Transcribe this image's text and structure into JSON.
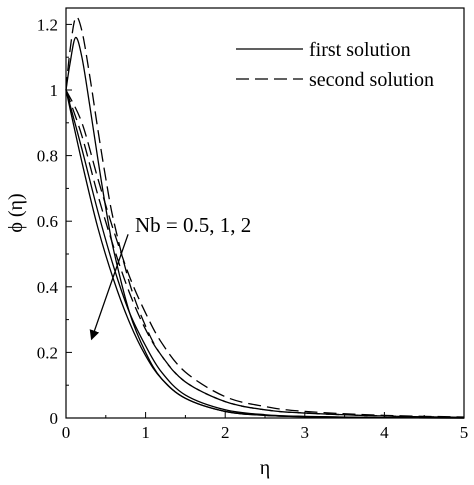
{
  "chart_data": {
    "type": "line",
    "xlabel": "η",
    "ylabel": "ϕ (η)",
    "xlim": [
      0,
      5
    ],
    "ylim": [
      0,
      1.25
    ],
    "xticks": [
      0,
      1,
      2,
      3,
      4,
      5
    ],
    "yticks": [
      0,
      0.2,
      0.4,
      0.6,
      0.8,
      1,
      1.2
    ],
    "xtick_labels": [
      "0",
      "1",
      "2",
      "3",
      "4",
      "5"
    ],
    "ytick_labels": [
      "0",
      "0.2",
      "0.4",
      "0.6",
      "0.8",
      "1",
      "1.2"
    ],
    "grid": false,
    "legend": {
      "placement": "top-right",
      "entries": [
        {
          "label": "first solution",
          "style": "solid"
        },
        {
          "label": "second solution",
          "style": "dashed"
        }
      ]
    },
    "annotation": {
      "text": "Nb = 0.5, 1, 2",
      "arrow_from": [
        0.78,
        0.56
      ],
      "arrow_to": [
        0.32,
        0.24
      ]
    },
    "series": [
      {
        "style": "solid",
        "x": [
          0,
          0.2,
          0.4,
          0.6,
          0.8,
          1.0,
          1.2,
          1.5,
          2.0,
          2.5,
          3.0,
          4.0,
          5.0
        ],
        "y": [
          1.0,
          0.78,
          0.58,
          0.42,
          0.29,
          0.19,
          0.12,
          0.06,
          0.02,
          0.008,
          0.004,
          0.001,
          0.0
        ]
      },
      {
        "style": "solid",
        "x": [
          0,
          0.2,
          0.4,
          0.6,
          0.8,
          1.0,
          1.2,
          1.5,
          2.0,
          2.5,
          3.0,
          4.0,
          5.0
        ],
        "y": [
          1.0,
          0.82,
          0.63,
          0.46,
          0.32,
          0.22,
          0.14,
          0.07,
          0.025,
          0.01,
          0.005,
          0.001,
          0.0
        ]
      },
      {
        "style": "solid",
        "x": [
          0,
          0.05,
          0.12,
          0.2,
          0.3,
          0.4,
          0.5,
          0.6,
          0.8,
          1.0,
          1.2,
          1.5,
          2.0,
          2.5,
          3.0,
          4.0,
          5.0
        ],
        "y": [
          1.0,
          1.08,
          1.16,
          1.1,
          0.95,
          0.79,
          0.64,
          0.51,
          0.32,
          0.2,
          0.12,
          0.06,
          0.02,
          0.008,
          0.004,
          0.001,
          0.0
        ]
      },
      {
        "style": "dashed",
        "x": [
          0,
          0.2,
          0.4,
          0.6,
          0.8,
          1.0,
          1.2,
          1.5,
          2.0,
          2.5,
          3.0,
          4.0,
          5.0
        ],
        "y": [
          1.0,
          0.86,
          0.68,
          0.52,
          0.38,
          0.27,
          0.19,
          0.11,
          0.05,
          0.025,
          0.015,
          0.006,
          0.002
        ]
      },
      {
        "style": "dashed",
        "x": [
          0,
          0.2,
          0.4,
          0.6,
          0.8,
          1.0,
          1.2,
          1.5,
          2.0,
          2.5,
          3.0,
          4.0,
          5.0
        ],
        "y": [
          1.0,
          0.9,
          0.73,
          0.57,
          0.43,
          0.32,
          0.23,
          0.14,
          0.065,
          0.035,
          0.02,
          0.008,
          0.003
        ]
      },
      {
        "style": "dashed",
        "x": [
          0,
          0.05,
          0.12,
          0.2,
          0.3,
          0.4,
          0.5,
          0.6,
          0.8,
          1.0,
          1.2,
          1.5,
          2.0,
          2.5,
          3.0,
          4.0,
          5.0
        ],
        "y": [
          1.0,
          1.12,
          1.22,
          1.18,
          1.04,
          0.88,
          0.73,
          0.6,
          0.41,
          0.28,
          0.19,
          0.11,
          0.05,
          0.025,
          0.015,
          0.006,
          0.002
        ]
      }
    ]
  }
}
